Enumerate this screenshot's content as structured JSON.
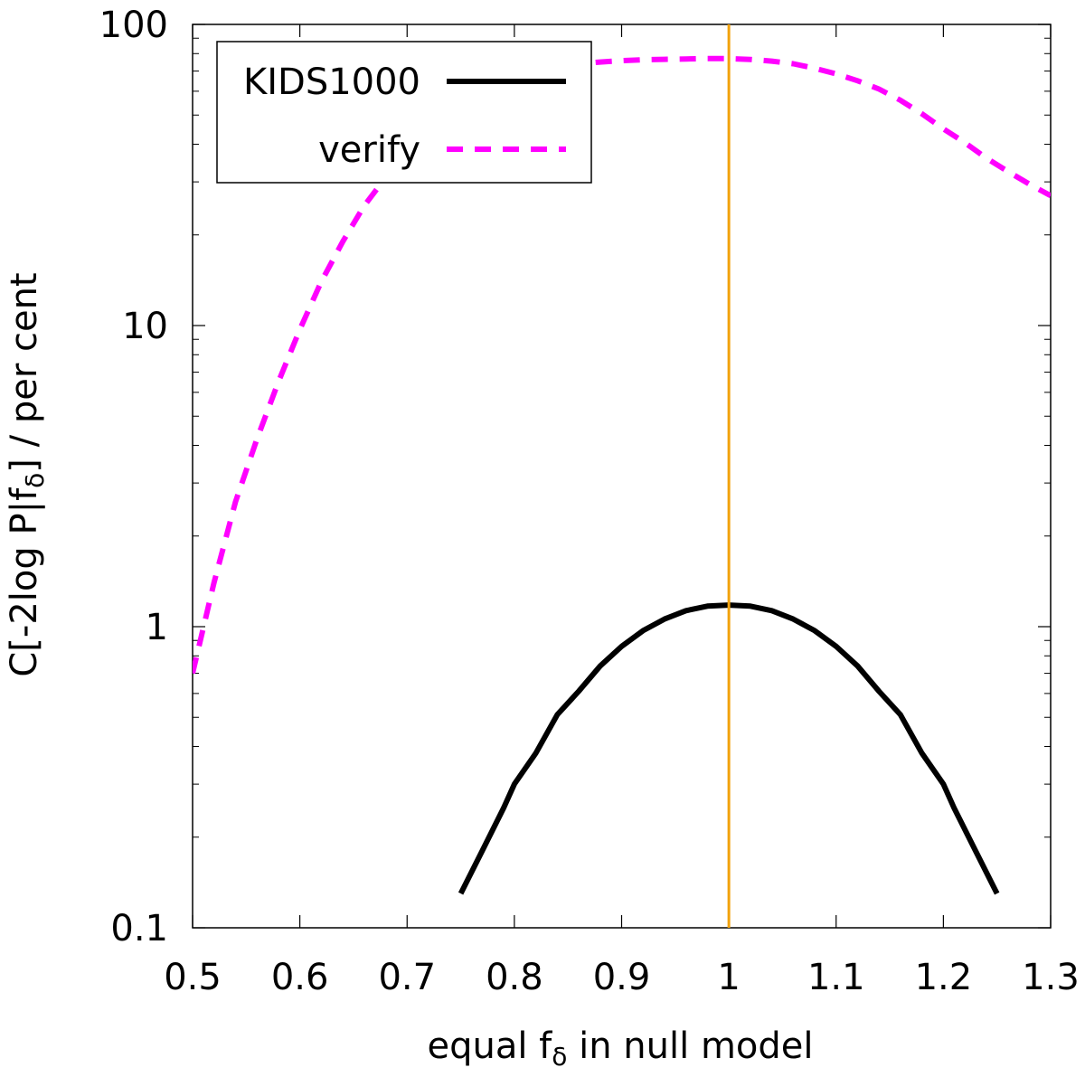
{
  "chart_data": {
    "type": "line",
    "xlabel": {
      "prefix": "equal f",
      "sub": "δ",
      "suffix": " in null model"
    },
    "ylabel": {
      "prefix": "C[-2log P|f",
      "sub": "δ",
      "suffix": "] / per cent"
    },
    "xlim": [
      0.5,
      1.3
    ],
    "ylim": [
      0.1,
      100
    ],
    "yscale": "log",
    "grid": false,
    "legend_position": "top-left",
    "x_ticks": [
      0.5,
      0.6,
      0.7,
      0.8,
      0.9,
      1.0,
      1.1,
      1.2,
      1.3
    ],
    "x_tick_labels": [
      "0.5",
      "0.6",
      "0.7",
      "0.8",
      "0.9",
      "1",
      "1.1",
      "1.2",
      "1.3"
    ],
    "y_ticks": [
      0.1,
      1,
      10,
      100
    ],
    "y_tick_labels": [
      "0.1",
      "1",
      "10",
      "100"
    ],
    "vertical_line": {
      "x": 1.0,
      "color": "#f2a20d"
    },
    "series": [
      {
        "name": "KIDS1000",
        "color": "#000000",
        "style": "solid",
        "x": [
          0.75,
          0.77,
          0.79,
          0.8,
          0.82,
          0.84,
          0.86,
          0.88,
          0.9,
          0.92,
          0.94,
          0.96,
          0.98,
          1.0,
          1.02,
          1.04,
          1.06,
          1.08,
          1.1,
          1.12,
          1.14,
          1.16,
          1.18,
          1.2,
          1.21,
          1.23,
          1.25
        ],
        "y": [
          0.13,
          0.18,
          0.25,
          0.3,
          0.38,
          0.51,
          0.61,
          0.74,
          0.86,
          0.97,
          1.06,
          1.13,
          1.17,
          1.18,
          1.17,
          1.13,
          1.06,
          0.97,
          0.86,
          0.74,
          0.61,
          0.51,
          0.38,
          0.3,
          0.25,
          0.18,
          0.13
        ]
      },
      {
        "name": "verify",
        "color": "#ff00ff",
        "style": "dashed",
        "x": [
          0.5,
          0.52,
          0.54,
          0.56,
          0.58,
          0.6,
          0.62,
          0.64,
          0.66,
          0.68,
          0.7,
          0.72,
          0.74,
          0.76,
          0.78,
          0.8,
          0.82,
          0.84,
          0.86,
          0.88,
          0.9,
          0.92,
          0.94,
          0.96,
          0.98,
          1.0,
          1.02,
          1.04,
          1.06,
          1.08,
          1.1,
          1.12,
          1.14,
          1.16,
          1.18,
          1.2,
          1.22,
          1.24,
          1.26,
          1.28,
          1.3
        ],
        "y": [
          0.7,
          1.4,
          2.6,
          4.2,
          6.5,
          9.7,
          14.0,
          19.0,
          25.0,
          31.0,
          38.0,
          45.0,
          52.0,
          58.0,
          63.0,
          67.0,
          70.0,
          72.5,
          74.0,
          75.0,
          75.8,
          76.3,
          76.6,
          76.8,
          77.0,
          77.0,
          76.5,
          75.5,
          74.0,
          71.5,
          68.5,
          65.0,
          61.0,
          56.0,
          50.5,
          45.0,
          40.5,
          36.0,
          32.5,
          29.5,
          27.0
        ]
      }
    ]
  }
}
